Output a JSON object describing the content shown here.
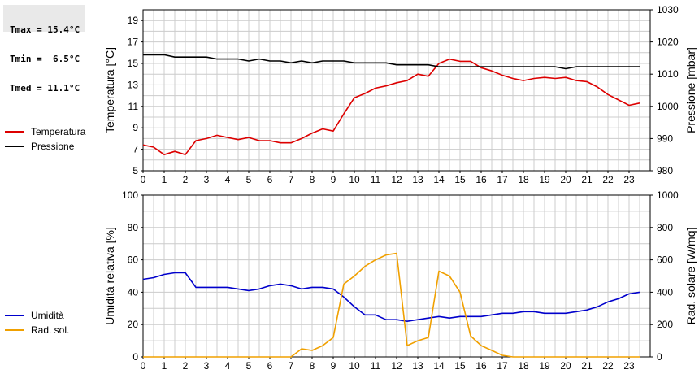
{
  "stats": {
    "tmax": "Tmax = 15.4°C",
    "tmin": "Tmin =  6.5°C",
    "tmed": "Tmed = 11.1°C"
  },
  "colors": {
    "temperatura": "#dd0000",
    "pressione": "#000000",
    "umidita": "#0000cc",
    "rad_sol": "#f0a000",
    "grid": "#cccccc"
  },
  "chart_data": [
    {
      "type": "line",
      "title": "",
      "xlabel": "",
      "ylabel_left": "Temperatura [°C]",
      "ylabel_right": "Pressione [mbar]",
      "xlim": [
        0,
        24
      ],
      "x_ticks": [
        0,
        1,
        2,
        3,
        4,
        5,
        6,
        7,
        8,
        9,
        10,
        11,
        12,
        13,
        14,
        15,
        16,
        17,
        18,
        19,
        20,
        21,
        22,
        23
      ],
      "ylim_left": [
        5,
        20
      ],
      "y_ticks_left": [
        5,
        7,
        9,
        11,
        13,
        15,
        17,
        19
      ],
      "ylim_right": [
        980,
        1030
      ],
      "y_ticks_right": [
        980,
        990,
        1000,
        1010,
        1020,
        1030
      ],
      "legend_position": "left",
      "series": [
        {
          "name": "Temperatura",
          "axis": "left",
          "x": [
            0,
            0.5,
            1,
            1.5,
            2,
            2.5,
            3,
            3.5,
            4,
            4.5,
            5,
            5.5,
            6,
            6.5,
            7,
            7.5,
            8,
            8.5,
            9,
            9.5,
            10,
            10.5,
            11,
            11.5,
            12,
            12.5,
            13,
            13.5,
            14,
            14.5,
            15,
            15.5,
            16,
            16.5,
            17,
            17.5,
            18,
            18.5,
            19,
            19.5,
            20,
            20.5,
            21,
            21.5,
            22,
            22.5,
            23,
            23.5
          ],
          "y": [
            7.4,
            7.2,
            6.5,
            6.8,
            6.5,
            7.8,
            8.0,
            8.3,
            8.1,
            7.9,
            8.1,
            7.8,
            7.8,
            7.6,
            7.6,
            8.0,
            8.5,
            8.9,
            8.7,
            10.3,
            11.8,
            12.2,
            12.7,
            12.9,
            13.2,
            13.4,
            14.0,
            13.8,
            15.0,
            15.4,
            15.2,
            15.2,
            14.6,
            14.3,
            13.9,
            13.6,
            13.4,
            13.6,
            13.7,
            13.6,
            13.7,
            13.4,
            13.3,
            12.8,
            12.1,
            11.6,
            11.1,
            11.3
          ]
        },
        {
          "name": "Pressione",
          "axis": "right",
          "x": [
            0,
            0.5,
            1,
            1.5,
            2,
            2.5,
            3,
            3.5,
            4,
            4.5,
            5,
            5.5,
            6,
            6.5,
            7,
            7.5,
            8,
            8.5,
            9,
            9.5,
            10,
            10.5,
            11,
            11.5,
            12,
            12.5,
            13,
            13.5,
            14,
            14.5,
            15,
            15.5,
            16,
            16.5,
            17,
            17.5,
            18,
            18.5,
            19,
            19.5,
            20,
            20.5,
            21,
            21.5,
            22,
            22.5,
            23,
            23.5
          ],
          "y": [
            1016,
            1016,
            1016,
            1015.3,
            1015.3,
            1015.3,
            1015.3,
            1014.7,
            1014.7,
            1014.7,
            1014.1,
            1014.7,
            1014.1,
            1014.1,
            1013.5,
            1014.1,
            1013.5,
            1014.1,
            1014.1,
            1014.1,
            1013.5,
            1013.5,
            1013.5,
            1013.5,
            1012.9,
            1012.9,
            1012.9,
            1012.9,
            1012.3,
            1012.3,
            1012.3,
            1012.3,
            1012.3,
            1012.3,
            1012.3,
            1012.3,
            1012.3,
            1012.3,
            1012.3,
            1012.3,
            1011.7,
            1012.3,
            1012.3,
            1012.3,
            1012.3,
            1012.3,
            1012.3,
            1012.3
          ]
        }
      ]
    },
    {
      "type": "line",
      "title": "",
      "xlabel": "",
      "ylabel_left": "Umidità relativa [%]",
      "ylabel_right": "Rad. solare [W/mq]",
      "xlim": [
        0,
        24
      ],
      "x_ticks": [
        0,
        1,
        2,
        3,
        4,
        5,
        6,
        7,
        8,
        9,
        10,
        11,
        12,
        13,
        14,
        15,
        16,
        17,
        18,
        19,
        20,
        21,
        22,
        23
      ],
      "ylim_left": [
        0,
        100
      ],
      "y_ticks_left": [
        0,
        20,
        40,
        60,
        80,
        100
      ],
      "ylim_right": [
        0,
        1000
      ],
      "y_ticks_right": [
        0,
        200,
        400,
        600,
        800,
        1000
      ],
      "legend_position": "left",
      "series": [
        {
          "name": "Umidità",
          "axis": "left",
          "x": [
            0,
            0.5,
            1,
            1.5,
            2,
            2.5,
            3,
            3.5,
            4,
            4.5,
            5,
            5.5,
            6,
            6.5,
            7,
            7.5,
            8,
            8.5,
            9,
            9.5,
            10,
            10.5,
            11,
            11.5,
            12,
            12.5,
            13,
            13.5,
            14,
            14.5,
            15,
            15.5,
            16,
            16.5,
            17,
            17.5,
            18,
            18.5,
            19,
            19.5,
            20,
            20.5,
            21,
            21.5,
            22,
            22.5,
            23,
            23.5
          ],
          "y": [
            48,
            49,
            51,
            52,
            52,
            43,
            43,
            43,
            43,
            42,
            41,
            42,
            44,
            45,
            44,
            42,
            43,
            43,
            42,
            37,
            31,
            26,
            26,
            23,
            23,
            22,
            23,
            24,
            25,
            24,
            25,
            25,
            25,
            26,
            27,
            27,
            28,
            28,
            27,
            27,
            27,
            28,
            29,
            31,
            34,
            36,
            39,
            40
          ]
        },
        {
          "name": "Rad. sol.",
          "axis": "right",
          "x": [
            0,
            0.5,
            1,
            1.5,
            2,
            2.5,
            3,
            3.5,
            4,
            4.5,
            5,
            5.5,
            6,
            6.5,
            7,
            7.5,
            8,
            8.5,
            9,
            9.5,
            10,
            10.5,
            11,
            11.5,
            12,
            12.5,
            13,
            13.5,
            14,
            14.5,
            15,
            15.5,
            16,
            16.5,
            17,
            17.5,
            18,
            18.5,
            19,
            19.5,
            20,
            20.5,
            21,
            21.5,
            22,
            22.5,
            23,
            23.5
          ],
          "y": [
            0,
            0,
            0,
            0,
            0,
            0,
            0,
            0,
            0,
            0,
            0,
            0,
            0,
            0,
            0,
            50,
            40,
            70,
            120,
            450,
            500,
            560,
            600,
            630,
            640,
            70,
            100,
            120,
            530,
            500,
            400,
            130,
            70,
            40,
            10,
            0,
            0,
            0,
            0,
            0,
            0,
            0,
            0,
            0,
            0,
            0,
            0,
            0
          ]
        }
      ]
    }
  ]
}
